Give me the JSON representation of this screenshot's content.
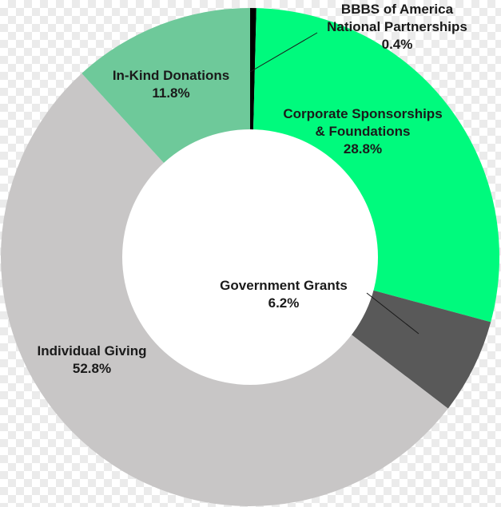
{
  "chart_data": {
    "type": "pie",
    "donut": true,
    "legend": "none",
    "slices": [
      {
        "name": "BBBS of America National Partnerships",
        "lines": [
          "BBBS of America",
          "National Partnerships"
        ],
        "pct_label": "0.4%",
        "value": 0.4,
        "color": "#000000"
      },
      {
        "name": "Corporate Sponsorships & Foundations",
        "lines": [
          "Corporate Sponsorships",
          "& Foundations"
        ],
        "pct_label": "28.8%",
        "value": 28.8,
        "color": "#00fa7d"
      },
      {
        "name": "Government Grants",
        "lines": [
          "Government Grants"
        ],
        "pct_label": "6.2%",
        "value": 6.2,
        "color": "#595959"
      },
      {
        "name": "Individual Giving",
        "lines": [
          "Individual Giving"
        ],
        "pct_label": "52.8%",
        "value": 52.8,
        "color": "#c8c6c6"
      },
      {
        "name": "In-Kind Donations",
        "lines": [
          "In-Kind Donations"
        ],
        "pct_label": "11.8%",
        "value": 11.8,
        "color": "#6ec99a"
      }
    ]
  }
}
